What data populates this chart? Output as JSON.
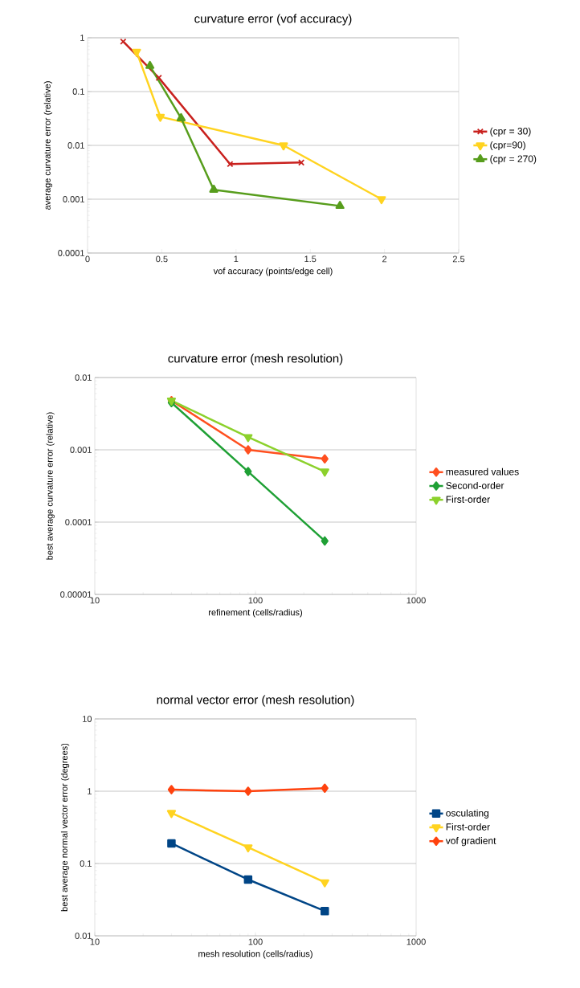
{
  "chart_data": [
    {
      "type": "line",
      "title": "curvature error (vof accuracy)",
      "xlabel": "vof accuracy (points/edge cell)",
      "ylabel": "average curvature error (relative)",
      "log": "y",
      "grid": "y",
      "legend": "right",
      "line_style": "solid",
      "xlim": [
        0,
        2.5
      ],
      "xticks": [
        0,
        0.5,
        1,
        1.5,
        2,
        2.5
      ],
      "ylim": [
        0.0001,
        1
      ],
      "yticks": [
        {
          "value": 0.0001,
          "label": "0.0001"
        },
        {
          "value": 0.001,
          "label": "0.001"
        },
        {
          "value": 0.01,
          "label": "0.01"
        },
        {
          "value": 0.1,
          "label": "0.1"
        },
        {
          "value": 1,
          "label": "1"
        }
      ],
      "series": [
        {
          "name": "(cpr = 30)",
          "color": "#c9211e",
          "marker": "cross",
          "x": [
            0.24,
            0.48,
            0.96,
            1.44
          ],
          "values": [
            0.85,
            0.18,
            0.0045,
            0.0048
          ]
        },
        {
          "name": "(cpr=90)",
          "color": "#ffd320",
          "marker": "triangle-down",
          "x": [
            0.33,
            0.49,
            1.32,
            1.98
          ],
          "values": [
            0.55,
            0.034,
            0.01,
            0.001
          ]
        },
        {
          "name": "(cpr = 270)",
          "color": "#579d1c",
          "marker": "triangle",
          "x": [
            0.42,
            0.63,
            0.85,
            1.7
          ],
          "values": [
            0.3,
            0.032,
            0.0015,
            0.00075
          ]
        }
      ]
    },
    {
      "type": "line",
      "title": "curvature error (mesh resolution)",
      "xlabel": "refinement (cells/radius)",
      "ylabel": "best average curvature error (relative)",
      "log": "xy",
      "grid": "y",
      "legend": "right",
      "line_style": "solid",
      "xlim": [
        10,
        1000
      ],
      "xticks": [
        {
          "value": 10,
          "label": "10"
        },
        {
          "value": 100,
          "label": "100"
        },
        {
          "value": 1000,
          "label": "1000"
        }
      ],
      "ylim": [
        1e-05,
        0.01
      ],
      "yticks": [
        {
          "value": 1e-05,
          "label": "0.00001"
        },
        {
          "value": 0.0001,
          "label": "0.0001"
        },
        {
          "value": 0.001,
          "label": "0.001"
        },
        {
          "value": 0.01,
          "label": "0.01"
        }
      ],
      "series": [
        {
          "name": "measured values",
          "color": "#ff4f1f",
          "marker": "diamond",
          "x": [
            30,
            90,
            270
          ],
          "values": [
            0.0048,
            0.001,
            0.00075
          ]
        },
        {
          "name": "Second-order",
          "color": "#1fa035",
          "marker": "diamond",
          "x": [
            30,
            90,
            270
          ],
          "values": [
            0.0045,
            0.0005,
            5.5e-05
          ]
        },
        {
          "name": "First-order",
          "color": "#8cd12c",
          "marker": "triangle-down",
          "x": [
            30,
            90,
            270
          ],
          "values": [
            0.0048,
            0.0015,
            0.0005
          ]
        }
      ]
    },
    {
      "type": "line",
      "title": "normal vector error (mesh resolution)",
      "xlabel": "mesh resolution (cells/radius)",
      "ylabel": "best average normal vector error (degrees)",
      "log": "xy",
      "grid": "y",
      "legend": "right",
      "line_style": "solid",
      "xlim": [
        10,
        1000
      ],
      "xticks": [
        {
          "value": 10,
          "label": "10"
        },
        {
          "value": 100,
          "label": "100"
        },
        {
          "value": 1000,
          "label": "1000"
        }
      ],
      "ylim": [
        0.01,
        10
      ],
      "yticks": [
        {
          "value": 0.01,
          "label": "0.01"
        },
        {
          "value": 0.1,
          "label": "0.1"
        },
        {
          "value": 1,
          "label": "1"
        },
        {
          "value": 10,
          "label": "10"
        }
      ],
      "series": [
        {
          "name": "osculating",
          "color": "#004586",
          "marker": "square",
          "x": [
            30,
            90,
            270
          ],
          "values": [
            0.19,
            0.06,
            0.022
          ]
        },
        {
          "name": "First-order",
          "color": "#ffd320",
          "marker": "triangle-down",
          "x": [
            30,
            90,
            270
          ],
          "values": [
            0.5,
            0.167,
            0.055
          ]
        },
        {
          "name": "vof gradient",
          "color": "#ff420e",
          "marker": "diamond",
          "x": [
            30,
            90,
            270
          ],
          "values": [
            1.05,
            1.0,
            1.1
          ]
        }
      ]
    }
  ]
}
